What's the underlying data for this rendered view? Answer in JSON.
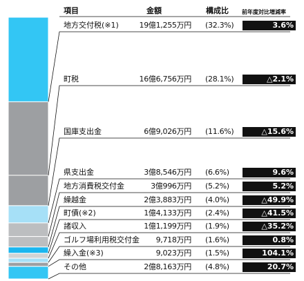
{
  "header": {
    "item": "項目",
    "amount": "金額",
    "ratio": "構成比",
    "change": "前年度対比増減率"
  },
  "chart_data": {
    "type": "bar",
    "categories": [
      "地方交付税(※1)",
      "町税",
      "国庫支出金",
      "県支出金",
      "地方消費税交付金",
      "繰越金",
      "町債(※2)",
      "諸収入",
      "ゴルフ場利用税交付金",
      "繰入金(※3)",
      "その他"
    ],
    "amounts": [
      "19億1,255万円",
      "16億6,756万円",
      "6億9,026万円",
      "3億8,546万円",
      "3億996万円",
      "2億3,883万円",
      "1億4,133万円",
      "1億1,199万円",
      "9,718万円",
      "9,023万円",
      "2億8,163万円"
    ],
    "ratios": [
      "(32.3%)",
      "(28.1%)",
      "(11.6%)",
      "(6.6%)",
      "(5.2%)",
      "(4.0%)",
      "(2.4%)",
      "(1.9%)",
      "(1.6%)",
      "(1.5%)",
      "(4.8%)"
    ],
    "values": [
      32.3,
      28.1,
      11.6,
      6.6,
      5.2,
      4.0,
      2.4,
      1.9,
      1.6,
      1.5,
      4.8
    ],
    "changes": [
      "3.6%",
      "△2.1%",
      "△15.6%",
      "9.6%",
      "5.2%",
      "△49.9%",
      "△41.5%",
      "△35.2%",
      "0.8%",
      "104.1%",
      "20.7%"
    ],
    "colors": [
      "#33c6f4",
      "#9d9fa2",
      "#9d9fa2",
      "#a6e0f7",
      "#bcbec0",
      "#bcbec0",
      "#1bb6ef",
      "#d1d3d4",
      "#a6e0f7",
      "#9d9fa2",
      "#33c6f4"
    ]
  }
}
